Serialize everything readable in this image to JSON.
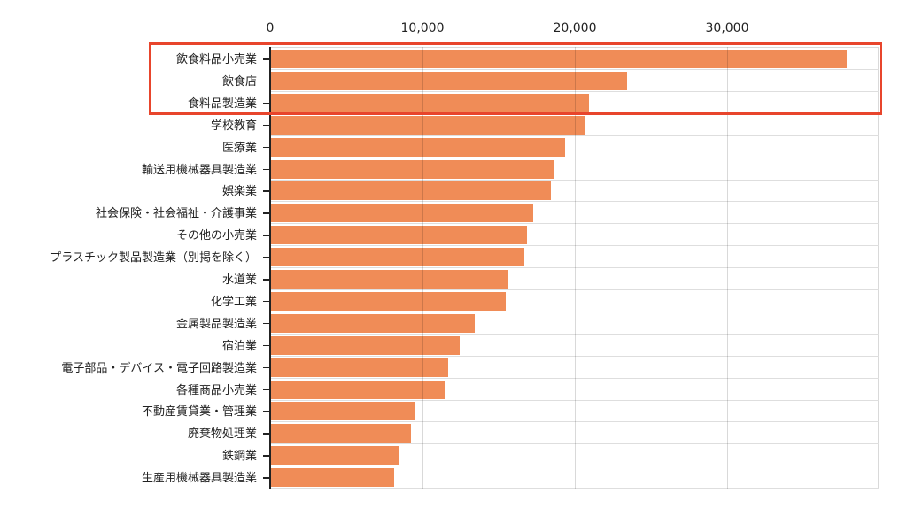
{
  "chart_data": {
    "type": "bar",
    "orientation": "horizontal",
    "title": "",
    "xlabel": "",
    "ylabel": "",
    "xlim": [
      0,
      40000
    ],
    "x_ticks": [
      "0",
      "10,000",
      "20,000",
      "30,000"
    ],
    "grid": true,
    "legend": null,
    "bar_color": "#f08c57",
    "highlight_color": "#e8452c",
    "highlighted_categories": [
      "飲食料品小売業",
      "飲食店",
      "食料品製造業"
    ],
    "categories": [
      "飲食料品小売業",
      "飲食店",
      "食料品製造業",
      "学校教育",
      "医療業",
      "輸送用機械器具製造業",
      "娯楽業",
      "社会保険・社会福祉・介護事業",
      "その他の小売業",
      "プラスチック製品製造業（別掲を除く）",
      "水道業",
      "化学工業",
      "金属製品製造業",
      "宿泊業",
      "電子部品・デバイス・電子回路製造業",
      "各種商品小売業",
      "不動産賃貸業・管理業",
      "廃棄物処理業",
      "鉄鋼業",
      "生産用機械器具製造業"
    ],
    "values": [
      37800,
      23400,
      20900,
      20600,
      19300,
      18600,
      18400,
      17200,
      16800,
      16600,
      15500,
      15400,
      13400,
      12400,
      11600,
      11400,
      9400,
      9200,
      8400,
      8100
    ]
  },
  "axis": {
    "ticks": [
      {
        "label": "0",
        "x": 305
      },
      {
        "label": "10,000",
        "x": 477
      },
      {
        "label": "20,000",
        "x": 649
      },
      {
        "label": "30,000",
        "x": 821
      }
    ]
  }
}
